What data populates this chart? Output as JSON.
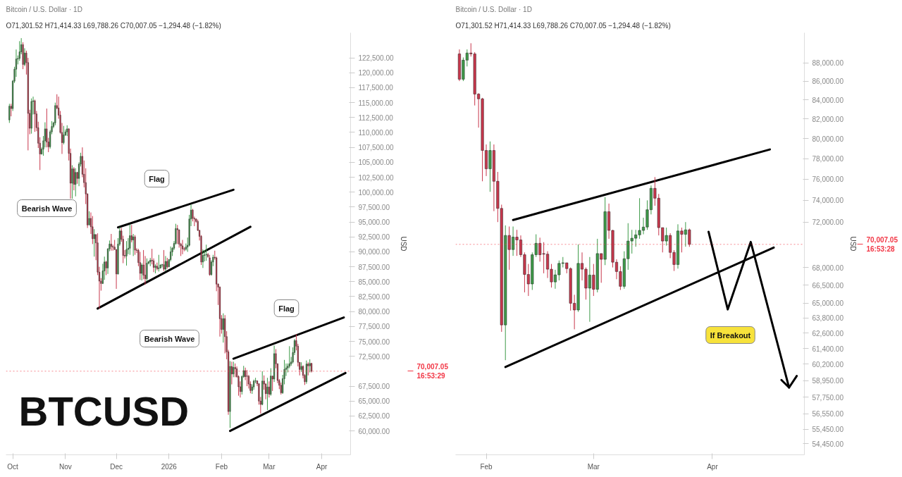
{
  "chart_data": [
    {
      "type": "candlestick",
      "title": "Bitcoin / U.S. Dollar · 1D",
      "subtitle": "O71,301.52 H71,414.33 L69,788.26 C70,007.05 −1,294.48 (−1.82%)",
      "ylabel": "USD",
      "x": [
        "2025-09-29",
        "2025-09-30",
        "2025-10-01",
        "2025-10-02",
        "2025-10-03",
        "2025-10-04",
        "2025-10-05",
        "2025-10-06",
        "2025-10-07",
        "2025-10-08",
        "2025-10-09",
        "2025-10-10",
        "2025-10-11",
        "2025-10-12",
        "2025-10-13",
        "2025-10-14",
        "2025-10-15",
        "2025-10-16",
        "2025-10-17",
        "2025-10-18",
        "2025-10-19",
        "2025-10-20",
        "2025-10-21",
        "2025-10-22",
        "2025-10-23",
        "2025-10-24",
        "2025-10-25",
        "2025-10-26",
        "2025-10-27",
        "2025-10-28",
        "2025-10-29",
        "2025-10-30",
        "2025-10-31",
        "2025-11-01",
        "2025-11-02",
        "2025-11-03",
        "2025-11-04",
        "2025-11-05",
        "2025-11-06",
        "2025-11-07",
        "2025-11-08",
        "2025-11-09",
        "2025-11-10",
        "2025-11-11",
        "2025-11-12",
        "2025-11-13",
        "2025-11-14",
        "2025-11-15",
        "2025-11-16",
        "2025-11-17",
        "2025-11-18",
        "2025-11-19",
        "2025-11-20",
        "2025-11-21",
        "2025-11-22",
        "2025-11-23",
        "2025-11-24",
        "2025-11-25",
        "2025-11-26",
        "2025-11-27",
        "2025-11-28",
        "2025-11-29",
        "2025-11-30",
        "2025-12-01",
        "2025-12-02",
        "2025-12-03",
        "2025-12-04",
        "2025-12-05",
        "2025-12-06",
        "2025-12-07",
        "2025-12-08",
        "2025-12-09",
        "2025-12-10",
        "2025-12-11",
        "2025-12-12",
        "2025-12-13",
        "2025-12-14",
        "2025-12-15",
        "2025-12-16",
        "2025-12-17",
        "2025-12-18",
        "2025-12-19",
        "2025-12-20",
        "2025-12-21",
        "2025-12-22",
        "2025-12-23",
        "2025-12-24",
        "2025-12-25",
        "2025-12-26",
        "2025-12-27",
        "2025-12-28",
        "2025-12-29",
        "2025-12-30",
        "2025-12-31",
        "2026-01-01",
        "2026-01-02",
        "2026-01-03",
        "2026-01-04",
        "2026-01-05",
        "2026-01-06",
        "2026-01-07",
        "2026-01-08",
        "2026-01-09",
        "2026-01-10",
        "2026-01-11",
        "2026-01-12",
        "2026-01-13",
        "2026-01-14",
        "2026-01-15",
        "2026-01-16",
        "2026-01-17",
        "2026-01-18",
        "2026-01-19",
        "2026-01-20",
        "2026-01-21",
        "2026-01-22",
        "2026-01-23",
        "2026-01-24",
        "2026-01-25",
        "2026-01-26",
        "2026-01-27",
        "2026-01-28",
        "2026-01-29",
        "2026-01-30",
        "2026-01-31",
        "2026-02-01",
        "2026-02-02",
        "2026-02-03",
        "2026-02-04",
        "2026-02-05",
        "2026-02-06",
        "2026-02-07",
        "2026-02-08",
        "2026-02-09",
        "2026-02-10",
        "2026-02-11",
        "2026-02-12",
        "2026-02-13",
        "2026-02-14",
        "2026-02-15",
        "2026-02-16",
        "2026-02-17",
        "2026-02-18",
        "2026-02-19",
        "2026-02-20",
        "2026-02-21",
        "2026-02-22",
        "2026-02-23",
        "2026-02-24",
        "2026-02-25",
        "2026-02-26",
        "2026-02-27",
        "2026-02-28",
        "2026-03-01",
        "2026-03-02",
        "2026-03-03",
        "2026-03-04",
        "2026-03-05",
        "2026-03-06",
        "2026-03-07",
        "2026-03-08",
        "2026-03-09",
        "2026-03-10",
        "2026-03-11",
        "2026-03-12",
        "2026-03-13",
        "2026-03-14",
        "2026-03-15",
        "2026-03-16",
        "2026-03-17",
        "2026-03-18",
        "2026-03-19",
        "2026-03-20",
        "2026-03-21",
        "2026-03-22",
        "2026-03-23",
        "2026-03-24",
        "2026-03-25",
        "2026-03-26"
      ],
      "ohlc": [
        [
          112100,
          114800,
          111600,
          114400
        ],
        [
          114400,
          114800,
          112700,
          114000
        ],
        [
          114000,
          118800,
          113600,
          118600
        ],
        [
          118600,
          121000,
          118300,
          120600
        ],
        [
          120600,
          123900,
          119300,
          122300
        ],
        [
          122300,
          122900,
          121400,
          122400
        ],
        [
          122400,
          125300,
          122000,
          123500
        ],
        [
          123500,
          125800,
          123100,
          124700
        ],
        [
          124700,
          125100,
          120600,
          121400
        ],
        [
          121400,
          124100,
          121100,
          123300
        ],
        [
          123300,
          123700,
          119700,
          121700
        ],
        [
          121700,
          122500,
          107000,
          113200
        ],
        [
          113200,
          113800,
          109700,
          110700
        ],
        [
          110700,
          115700,
          109800,
          115200
        ],
        [
          115200,
          116000,
          113000,
          115300
        ],
        [
          115300,
          115500,
          110100,
          113100
        ],
        [
          113100,
          113600,
          110200,
          110800
        ],
        [
          110800,
          111800,
          107400,
          108200
        ],
        [
          108200,
          109200,
          103700,
          106400
        ],
        [
          106400,
          107500,
          106300,
          107200
        ],
        [
          107200,
          109400,
          106100,
          108600
        ],
        [
          108600,
          111700,
          107500,
          110600
        ],
        [
          110600,
          114000,
          107500,
          108400
        ],
        [
          108400,
          109100,
          106700,
          107600
        ],
        [
          107600,
          110400,
          107300,
          110100
        ],
        [
          110100,
          111900,
          109700,
          111000
        ],
        [
          111000,
          111800,
          110700,
          111600
        ],
        [
          111600,
          115000,
          111200,
          114500
        ],
        [
          114500,
          116400,
          113900,
          114100
        ],
        [
          114100,
          116000,
          112300,
          112900
        ],
        [
          112900,
          113600,
          109800,
          110000
        ],
        [
          110000,
          111600,
          106400,
          108300
        ],
        [
          108300,
          111100,
          108000,
          109600
        ],
        [
          109600,
          110500,
          109400,
          110100
        ],
        [
          110100,
          111200,
          109400,
          110600
        ],
        [
          110600,
          110700,
          105300,
          106500
        ],
        [
          106500,
          107300,
          98900,
          101500
        ],
        [
          101500,
          104500,
          98900,
          103900
        ],
        [
          103900,
          104200,
          100300,
          101300
        ],
        [
          101300,
          104000,
          99300,
          103300
        ],
        [
          103300,
          103400,
          101400,
          102300
        ],
        [
          102300,
          105000,
          101000,
          104700
        ],
        [
          104700,
          106600,
          104300,
          106000
        ],
        [
          106000,
          107500,
          102500,
          103000
        ],
        [
          103000,
          105300,
          100800,
          101600
        ],
        [
          101600,
          104000,
          98000,
          99700
        ],
        [
          99700,
          99800,
          94000,
          94500
        ],
        [
          94500,
          96800,
          94500,
          95600
        ],
        [
          95600,
          96600,
          93000,
          94200
        ],
        [
          94200,
          96000,
          91300,
          92200
        ],
        [
          92200,
          93800,
          89200,
          92900
        ],
        [
          92900,
          92900,
          88600,
          91500
        ],
        [
          91500,
          93100,
          86100,
          86600
        ],
        [
          86600,
          87500,
          80500,
          85100
        ],
        [
          85100,
          85600,
          83500,
          84700
        ],
        [
          84700,
          88000,
          84600,
          86800
        ],
        [
          86800,
          89200,
          85300,
          88300
        ],
        [
          88300,
          88500,
          86100,
          87300
        ],
        [
          87300,
          90600,
          86300,
          90500
        ],
        [
          90500,
          91900,
          90100,
          91300
        ],
        [
          91300,
          93000,
          90200,
          90900
        ],
        [
          90900,
          91200,
          90200,
          90800
        ],
        [
          90800,
          92000,
          90300,
          90400
        ],
        [
          90400,
          90400,
          83800,
          86300
        ],
        [
          86300,
          92300,
          86200,
          91300
        ],
        [
          91300,
          94100,
          91000,
          93500
        ],
        [
          93500,
          94000,
          91700,
          92100
        ],
        [
          92100,
          92700,
          88100,
          89400
        ],
        [
          89400,
          90300,
          88900,
          89300
        ],
        [
          89300,
          91800,
          87700,
          90400
        ],
        [
          90400,
          92300,
          89600,
          90600
        ],
        [
          90600,
          94600,
          89500,
          92700
        ],
        [
          92700,
          94500,
          91600,
          92000
        ],
        [
          92000,
          93000,
          89300,
          92500
        ],
        [
          92500,
          92800,
          89500,
          90300
        ],
        [
          90300,
          90600,
          89800,
          90250
        ],
        [
          90250,
          90500,
          87600,
          88200
        ],
        [
          88200,
          90000,
          85300,
          86400
        ],
        [
          86400,
          88100,
          85200,
          87800
        ],
        [
          87800,
          90300,
          85400,
          86100
        ],
        [
          86100,
          89300,
          84500,
          85500
        ],
        [
          85500,
          88900,
          85100,
          88100
        ],
        [
          88100,
          88500,
          87900,
          88300
        ],
        [
          88300,
          89000,
          87600,
          88600
        ],
        [
          88600,
          90500,
          87900,
          88500
        ],
        [
          88500,
          88900,
          86600,
          87400
        ],
        [
          87400,
          87900,
          86400,
          87600
        ],
        [
          87600,
          88200,
          86900,
          87200
        ],
        [
          87200,
          89500,
          86700,
          87300
        ],
        [
          87300,
          87900,
          87200,
          87800
        ],
        [
          87800,
          88000,
          87400,
          87850
        ],
        [
          87850,
          90300,
          86800,
          87100
        ],
        [
          87100,
          89300,
          86800,
          88400
        ],
        [
          88400,
          89000,
          87200,
          87500
        ],
        [
          87500,
          88800,
          87400,
          88700
        ],
        [
          88700,
          90900,
          88400,
          90000
        ],
        [
          90000,
          90800,
          89300,
          90600
        ],
        [
          90600,
          91800,
          90300,
          91400
        ],
        [
          91400,
          94700,
          91200,
          93900
        ],
        [
          93900,
          94500,
          91300,
          93700
        ],
        [
          93700,
          93700,
          90700,
          91300
        ],
        [
          91300,
          91500,
          89300,
          91000
        ],
        [
          91000,
          92000,
          89600,
          90500
        ],
        [
          90500,
          90800,
          90100,
          90450
        ],
        [
          90450,
          91400,
          90200,
          90800
        ],
        [
          90800,
          92400,
          90000,
          91100
        ],
        [
          91100,
          96200,
          90900,
          95500
        ],
        [
          95500,
          97900,
          94300,
          97000
        ],
        [
          97000,
          97200,
          95100,
          95600
        ],
        [
          95600,
          95900,
          94300,
          95500
        ],
        [
          95500,
          95600,
          94900,
          95100
        ],
        [
          95100,
          95400,
          93500,
          93600
        ],
        [
          93600,
          93700,
          91900,
          92600
        ],
        [
          92600,
          92800,
          87800,
          88300
        ],
        [
          88300,
          90400,
          87300,
          89400
        ],
        [
          89400,
          90300,
          88400,
          89500
        ],
        [
          89500,
          91200,
          88500,
          89550
        ],
        [
          89550,
          89800,
          89000,
          89200
        ],
        [
          89000,
          89500,
          86000,
          86200
        ],
        [
          86200,
          88600,
          86000,
          88300
        ],
        [
          88300,
          89500,
          87600,
          89100
        ],
        [
          89100,
          90200,
          88700,
          89000
        ],
        [
          89000,
          89200,
          83400,
          84600
        ],
        [
          84600,
          84700,
          81100,
          84100
        ],
        [
          84100,
          84200,
          75800,
          78800
        ],
        [
          78800,
          79400,
          76300,
          77000
        ],
        [
          77000,
          79700,
          74800,
          78800
        ],
        [
          78800,
          79400,
          73000,
          75800
        ],
        [
          75800,
          76700,
          72000,
          73250
        ],
        [
          73250,
          73600,
          62700,
          63250
        ],
        [
          63250,
          71700,
          60500,
          70800
        ],
        [
          70800,
          71600,
          67800,
          69550
        ],
        [
          69550,
          71600,
          69000,
          70650
        ],
        [
          70650,
          71300,
          69000,
          70400
        ],
        [
          70400,
          70800,
          68900,
          69100
        ],
        [
          69100,
          69300,
          65900,
          67400
        ],
        [
          67400,
          68300,
          65600,
          66600
        ],
        [
          66600,
          69300,
          66100,
          69100
        ],
        [
          69100,
          70900,
          68900,
          70100
        ],
        [
          70100,
          70600,
          68500,
          69100
        ],
        [
          69200,
          70200,
          67500,
          69150
        ],
        [
          69150,
          69400,
          67100,
          67850
        ],
        [
          67850,
          68300,
          66300,
          66770
        ],
        [
          66770,
          67800,
          66200,
          67370
        ],
        [
          67370,
          68600,
          66900,
          68350
        ],
        [
          68350,
          68900,
          68000,
          68400
        ],
        [
          68400,
          68400,
          67500,
          67900
        ],
        [
          67900,
          68000,
          64400,
          65000
        ],
        [
          65000,
          65700,
          62900,
          64450
        ],
        [
          64450,
          70000,
          64300,
          68350
        ],
        [
          68350,
          69300,
          66900,
          67850
        ],
        [
          67850,
          68000,
          65300,
          66250
        ],
        [
          66250,
          68900,
          63500,
          67350
        ],
        [
          67350,
          68300,
          65600,
          66150
        ],
        [
          66150,
          70500,
          65900,
          69200
        ],
        [
          69200,
          69200,
          66700,
          68700
        ],
        [
          68700,
          74300,
          68200,
          72950
        ],
        [
          72950,
          73700,
          70500,
          71250
        ],
        [
          71250,
          71300,
          68000,
          68450
        ],
        [
          68450,
          68700,
          67000,
          67650
        ],
        [
          67650,
          68100,
          66100,
          66400
        ],
        [
          66400,
          69400,
          66200,
          68750
        ],
        [
          68750,
          71900,
          67800,
          70300
        ],
        [
          70300,
          71300,
          69200,
          70550
        ],
        [
          70550,
          71300,
          69800,
          70850
        ],
        [
          70850,
          74200,
          70500,
          71250
        ],
        [
          71250,
          72400,
          70900,
          71550
        ],
        [
          71550,
          74000,
          71300,
          73130
        ],
        [
          73130,
          75400,
          72700,
          75130
        ],
        [
          75130,
          76200,
          73500,
          74200
        ],
        [
          74200,
          74600,
          70800,
          71500
        ],
        [
          71500,
          71500,
          69300,
          70300
        ],
        [
          70300,
          71500,
          69900,
          70800
        ],
        [
          70800,
          71000,
          68800,
          69300
        ],
        [
          69300,
          69500,
          67700,
          68250
        ],
        [
          68250,
          71800,
          67900,
          71200
        ],
        [
          71200,
          71500,
          69300,
          70900
        ],
        [
          70900,
          72000,
          69800,
          71300
        ],
        [
          71301.52,
          71414.33,
          69788.26,
          70007.05
        ]
      ],
      "colors": [
        "#3d9a48",
        "#c8374c",
        "#3d9a48",
        "#3d9a48",
        "#3d9a48",
        "#3d9a48",
        "#3d9a48",
        "#3d9a48",
        "#c8374c",
        "#3d9a48",
        "#c8374c",
        "#c8374c",
        "#c8374c",
        "#3d9a48",
        "#3d9a48",
        "#c8374c",
        "#c8374c",
        "#c8374c",
        "#c8374c",
        "#3d9a48",
        "#3d9a48",
        "#3d9a48",
        "#c8374c",
        "#c8374c",
        "#3d9a48",
        "#3d9a48",
        "#3d9a48",
        "#3d9a48",
        "#c8374c",
        "#c8374c",
        "#c8374c",
        "#c8374c",
        "#3d9a48",
        "#3d9a48",
        "#3d9a48",
        "#c8374c",
        "#c8374c",
        "#3d9a48",
        "#c8374c",
        "#3d9a48",
        "#c8374c",
        "#3d9a48",
        "#3d9a48",
        "#c8374c",
        "#c8374c",
        "#c8374c",
        "#c8374c",
        "#3d9a48",
        "#c8374c",
        "#c8374c",
        "#3d9a48",
        "#c8374c",
        "#c8374c",
        "#c8374c",
        "#c8374c",
        "#3d9a48",
        "#3d9a48",
        "#c8374c",
        "#3d9a48",
        "#3d9a48",
        "#c8374c",
        "#c8374c",
        "#c8374c",
        "#c8374c",
        "#3d9a48",
        "#3d9a48",
        "#c8374c",
        "#c8374c",
        "#c8374c",
        "#3d9a48",
        "#3d9a48",
        "#3d9a48",
        "#c8374c",
        "#3d9a48",
        "#c8374c",
        "#c8374c",
        "#c8374c",
        "#c8374c",
        "#3d9a48",
        "#c8374c",
        "#c8374c",
        "#3d9a48",
        "#3d9a48",
        "#3d9a48",
        "#c8374c",
        "#c8374c",
        "#3d9a48",
        "#c8374c",
        "#3d9a48",
        "#3d9a48",
        "#3d9a48",
        "#c8374c",
        "#3d9a48",
        "#c8374c",
        "#3d9a48",
        "#3d9a48",
        "#3d9a48",
        "#3d9a48",
        "#3d9a48",
        "#c8374c",
        "#c8374c",
        "#c8374c",
        "#c8374c",
        "#c8374c",
        "#3d9a48",
        "#3d9a48",
        "#3d9a48",
        "#3d9a48",
        "#c8374c",
        "#c8374c",
        "#c8374c",
        "#c8374c",
        "#c8374c",
        "#c8374c",
        "#3d9a48",
        "#3d9a48",
        "#3d9a48",
        "#c8374c",
        "#c8374c",
        "#3d9a48",
        "#3d9a48",
        "#c8374c",
        "#c8374c",
        "#c8374c",
        "#c8374c",
        "#c8374c",
        "#3d9a48",
        "#c8374c",
        "#c8374c",
        "#c8374c",
        "#3d9a48",
        "#c8374c",
        "#3d9a48",
        "#c8374c",
        "#c8374c",
        "#c8374c",
        "#c8374c",
        "#3d9a48",
        "#3d9a48",
        "#c8374c",
        "#c8374c",
        "#c8374c",
        "#c8374c",
        "#3d9a48",
        "#3d9a48",
        "#3d9a48",
        "#c8374c",
        "#c8374c",
        "#c8374c",
        "#3d9a48",
        "#c8374c",
        "#c8374c",
        "#3d9a48",
        "#c8374c",
        "#3d9a48",
        "#c8374c",
        "#3d9a48",
        "#c8374c",
        "#c8374c",
        "#c8374c",
        "#c8374c",
        "#3d9a48",
        "#3d9a48",
        "#3d9a48",
        "#3d9a48",
        "#3d9a48",
        "#3d9a48",
        "#3d9a48",
        "#3d9a48",
        "#c8374c",
        "#c8374c",
        "#c8374c",
        "#3d9a48",
        "#c8374c",
        "#c8374c",
        "#3d9a48",
        "#c8374c",
        "#3d9a48",
        "#c8374c"
      ],
      "series": [
        {
          "type": "line",
          "color": "#000000",
          "x": [
            "2025-12-02",
            "2026-02-08"
          ],
          "values": [
            94100,
            100400
          ]
        },
        {
          "type": "line",
          "color": "#000000",
          "x": [
            "2025-11-20",
            "2026-02-18"
          ],
          "values": [
            80500,
            94200
          ]
        },
        {
          "type": "line",
          "color": "#000000",
          "x": [
            "2026-02-08",
            "2026-04-14"
          ],
          "values": [
            72100,
            79000
          ]
        },
        {
          "type": "line",
          "color": "#000000",
          "x": [
            "2026-02-06",
            "2026-04-15"
          ],
          "values": [
            60000,
            69700
          ]
        }
      ],
      "xlim": [
        "2025-09-27",
        "2026-04-18"
      ],
      "ylim": [
        56000,
        126700
      ],
      "xticks": [
        {
          "value": "2025-10-01",
          "label": "Oct"
        },
        {
          "value": "2025-11-01",
          "label": "Nov"
        },
        {
          "value": "2025-12-01",
          "label": "Dec"
        },
        {
          "value": "2026-01-01",
          "label": "2026"
        },
        {
          "value": "2026-02-01",
          "label": "Feb"
        },
        {
          "value": "2026-03-01",
          "label": "Mar"
        },
        {
          "value": "2026-04-01",
          "label": "Apr"
        }
      ],
      "yticks": [
        {
          "value": 60000,
          "label": "60,000.00"
        },
        {
          "value": 62500,
          "label": "62,500.00"
        },
        {
          "value": 65000,
          "label": "65,000.00"
        },
        {
          "value": 67500,
          "label": "67,500.00"
        },
        {
          "value": 72500,
          "label": "72,500.00"
        },
        {
          "value": 75000,
          "label": "75,000.00"
        },
        {
          "value": 77500,
          "label": "77,500.00"
        },
        {
          "value": 80000,
          "label": "80,000.00"
        },
        {
          "value": 82500,
          "label": "82,500.00"
        },
        {
          "value": 85000,
          "label": "85,000.00"
        },
        {
          "value": 87500,
          "label": "87,500.00"
        },
        {
          "value": 90000,
          "label": "90,000.00"
        },
        {
          "value": 92500,
          "label": "92,500.00"
        },
        {
          "value": 95000,
          "label": "95,000.00"
        },
        {
          "value": 97500,
          "label": "97,500.00"
        },
        {
          "value": 100000,
          "label": "100,000.00"
        },
        {
          "value": 102500,
          "label": "102,500.00"
        },
        {
          "value": 105000,
          "label": "105,000.00"
        },
        {
          "value": 107500,
          "label": "107,500.00"
        },
        {
          "value": 110000,
          "label": "110,000.00"
        },
        {
          "value": 112500,
          "label": "112,500.00"
        },
        {
          "value": 115000,
          "label": "115,000.00"
        },
        {
          "value": 117500,
          "label": "117,500.00"
        },
        {
          "value": 120000,
          "label": "120,000.00"
        },
        {
          "value": 122500,
          "label": "122,500.00"
        }
      ],
      "ref_lines": [
        {
          "axis": "y",
          "value": 70007.05,
          "label": "70,007.05\n16:53:29",
          "color": "#f23645",
          "line_style": "dotted"
        }
      ],
      "annotations": [
        "BTCUSD",
        "Flag",
        "Bearish Wave",
        "Flag",
        "Bearish Wave"
      ]
    },
    {
      "type": "candlestick",
      "title": "Bitcoin / U.S. Dollar · 1D",
      "subtitle": "O71,301.52 H71,414.33 L69,788.26 C70,007.05 −1,294.48 (−1.82%)",
      "ylabel": "USD",
      "log": "y",
      "x": [
        "2026-01-25",
        "2026-01-26",
        "2026-01-27",
        "2026-01-28",
        "2026-01-29",
        "2026-01-30",
        "2026-01-31",
        "2026-02-01",
        "2026-02-02",
        "2026-02-03",
        "2026-02-04",
        "2026-02-05",
        "2026-02-06",
        "2026-02-07",
        "2026-02-08",
        "2026-02-09",
        "2026-02-10",
        "2026-02-11",
        "2026-02-12",
        "2026-02-13",
        "2026-02-14",
        "2026-02-15",
        "2026-02-16",
        "2026-02-17",
        "2026-02-18",
        "2026-02-19",
        "2026-02-20",
        "2026-02-21",
        "2026-02-22",
        "2026-02-23",
        "2026-02-24",
        "2026-02-25",
        "2026-02-26",
        "2026-02-27",
        "2026-02-28",
        "2026-03-01",
        "2026-03-02",
        "2026-03-03",
        "2026-03-04",
        "2026-03-05",
        "2026-03-06",
        "2026-03-07",
        "2026-03-08",
        "2026-03-09",
        "2026-03-10",
        "2026-03-11",
        "2026-03-12",
        "2026-03-13",
        "2026-03-14",
        "2026-03-15",
        "2026-03-16",
        "2026-03-17",
        "2026-03-18",
        "2026-03-19",
        "2026-03-20",
        "2026-03-21",
        "2026-03-22",
        "2026-03-23",
        "2026-03-24",
        "2026-03-25",
        "2026-03-26"
      ],
      "ohlc": [
        [
          89000,
          89500,
          86000,
          86200
        ],
        [
          86200,
          88600,
          86000,
          88300
        ],
        [
          88300,
          89500,
          87600,
          89100
        ],
        [
          89100,
          90200,
          88700,
          89000
        ],
        [
          89000,
          89200,
          83400,
          84600
        ],
        [
          84600,
          84700,
          81100,
          84100
        ],
        [
          84100,
          84200,
          75800,
          78800
        ],
        [
          78800,
          79400,
          76300,
          77000
        ],
        [
          77000,
          79700,
          74800,
          78800
        ],
        [
          78800,
          79400,
          73000,
          75800
        ],
        [
          75800,
          76700,
          72000,
          73250
        ],
        [
          73250,
          73600,
          62700,
          63250
        ],
        [
          63250,
          71700,
          60500,
          70800
        ],
        [
          70800,
          71600,
          67800,
          69550
        ],
        [
          69550,
          71600,
          69000,
          70650
        ],
        [
          70650,
          71300,
          69000,
          70400
        ],
        [
          70400,
          70800,
          68900,
          69100
        ],
        [
          69100,
          69300,
          65900,
          67400
        ],
        [
          67400,
          68300,
          65600,
          66600
        ],
        [
          66600,
          69300,
          66100,
          69100
        ],
        [
          69100,
          70900,
          68900,
          70100
        ],
        [
          70100,
          70600,
          68500,
          69100
        ],
        [
          69200,
          70200,
          67500,
          69150
        ],
        [
          69150,
          69400,
          67100,
          67850
        ],
        [
          67850,
          68300,
          66300,
          66770
        ],
        [
          66770,
          67800,
          66200,
          67370
        ],
        [
          67370,
          68600,
          66900,
          68350
        ],
        [
          68350,
          68900,
          68000,
          68400
        ],
        [
          68400,
          68400,
          67500,
          67900
        ],
        [
          67900,
          68000,
          64400,
          65000
        ],
        [
          65000,
          65700,
          62900,
          64450
        ],
        [
          64450,
          70000,
          64300,
          68350
        ],
        [
          68350,
          69300,
          66900,
          67850
        ],
        [
          67850,
          68000,
          65300,
          66250
        ],
        [
          66250,
          68900,
          63500,
          67350
        ],
        [
          67350,
          68300,
          65600,
          66150
        ],
        [
          66150,
          70500,
          65900,
          69200
        ],
        [
          69200,
          69200,
          66700,
          68700
        ],
        [
          68700,
          74300,
          68200,
          72950
        ],
        [
          72950,
          73700,
          70500,
          71250
        ],
        [
          71250,
          71300,
          68000,
          68450
        ],
        [
          68450,
          68700,
          67000,
          67650
        ],
        [
          67650,
          68100,
          66100,
          66400
        ],
        [
          66400,
          69400,
          66200,
          68750
        ],
        [
          68750,
          71900,
          67800,
          70300
        ],
        [
          70300,
          71300,
          69200,
          70550
        ],
        [
          70550,
          71300,
          69800,
          70850
        ],
        [
          70850,
          74200,
          70500,
          71250
        ],
        [
          71250,
          72400,
          70900,
          71550
        ],
        [
          71550,
          74000,
          71300,
          73130
        ],
        [
          73130,
          75400,
          72700,
          75130
        ],
        [
          75130,
          76200,
          73500,
          74200
        ],
        [
          74200,
          74600,
          70800,
          71500
        ],
        [
          71500,
          71500,
          69300,
          70300
        ],
        [
          70300,
          71500,
          69900,
          70800
        ],
        [
          70800,
          71000,
          68800,
          69300
        ],
        [
          69300,
          69500,
          67700,
          68250
        ],
        [
          68250,
          71800,
          67900,
          71200
        ],
        [
          71200,
          71500,
          69300,
          70900
        ],
        [
          70900,
          72000,
          69800,
          71300
        ],
        [
          71301.52,
          71414.33,
          69788.26,
          70007.05
        ]
      ],
      "colors": [
        "#c8374c",
        "#3d9a48",
        "#3d9a48",
        "#c8374c",
        "#c8374c",
        "#c8374c",
        "#c8374c",
        "#c8374c",
        "#3d9a48",
        "#c8374c",
        "#c8374c",
        "#c8374c",
        "#3d9a48",
        "#c8374c",
        "#3d9a48",
        "#c8374c",
        "#c8374c",
        "#c8374c",
        "#c8374c",
        "#3d9a48",
        "#3d9a48",
        "#c8374c",
        "#c8374c",
        "#c8374c",
        "#c8374c",
        "#3d9a48",
        "#3d9a48",
        "#3d9a48",
        "#c8374c",
        "#c8374c",
        "#c8374c",
        "#3d9a48",
        "#c8374c",
        "#c8374c",
        "#3d9a48",
        "#c8374c",
        "#3d9a48",
        "#c8374c",
        "#3d9a48",
        "#c8374c",
        "#c8374c",
        "#c8374c",
        "#c8374c",
        "#3d9a48",
        "#3d9a48",
        "#3d9a48",
        "#3d9a48",
        "#3d9a48",
        "#3d9a48",
        "#3d9a48",
        "#3d9a48",
        "#c8374c",
        "#c8374c",
        "#c8374c",
        "#3d9a48",
        "#c8374c",
        "#c8374c",
        "#3d9a48",
        "#c8374c",
        "#3d9a48",
        "#c8374c"
      ],
      "series": [
        {
          "type": "line",
          "color": "#000000",
          "x": [
            "2026-02-08",
            "2026-04-16"
          ],
          "values": [
            72190,
            78900
          ]
        },
        {
          "type": "line",
          "color": "#000000",
          "x": [
            "2026-02-06",
            "2026-04-17"
          ],
          "values": [
            59980,
            69730
          ]
        },
        {
          "type": "line",
          "color": "#000000",
          "x": [
            "2026-03-31",
            "2026-04-05",
            "2026-04-11",
            "2026-04-21"
          ],
          "values": [
            71130,
            64500,
            70220,
            58450
          ]
        },
        {
          "type": "line",
          "color": "#000000",
          "x": [
            "2026-04-19",
            "2026-04-21",
            "2026-04-23"
          ],
          "values": [
            59010,
            58450,
            59310
          ]
        }
      ],
      "xlim": [
        "2026-01-24",
        "2026-04-25"
      ],
      "ylim": [
        53700,
        91400
      ],
      "xticks": [
        {
          "value": "2026-02-01",
          "label": "Feb"
        },
        {
          "value": "2026-03-01",
          "label": "Mar"
        },
        {
          "value": "2026-04-01",
          "label": "Apr"
        }
      ],
      "yticks": [
        {
          "value": 54450,
          "label": "54,450.00"
        },
        {
          "value": 55450,
          "label": "55,450.00"
        },
        {
          "value": 56550,
          "label": "56,550.00"
        },
        {
          "value": 57750,
          "label": "57,750.00"
        },
        {
          "value": 58950,
          "label": "58,950.00"
        },
        {
          "value": 60200,
          "label": "60,200.00"
        },
        {
          "value": 61400,
          "label": "61,400.00"
        },
        {
          "value": 62600,
          "label": "62,600.00"
        },
        {
          "value": 63800,
          "label": "63,800.00"
        },
        {
          "value": 65000,
          "label": "65,000.00"
        },
        {
          "value": 66500,
          "label": "66,500.00"
        },
        {
          "value": 68000,
          "label": "68,000.00"
        },
        {
          "value": 72000,
          "label": "72,000.00"
        },
        {
          "value": 74000,
          "label": "74,000.00"
        },
        {
          "value": 76000,
          "label": "76,000.00"
        },
        {
          "value": 78000,
          "label": "78,000.00"
        },
        {
          "value": 80000,
          "label": "80,000.00"
        },
        {
          "value": 82000,
          "label": "82,000.00"
        },
        {
          "value": 84000,
          "label": "84,000.00"
        },
        {
          "value": 86000,
          "label": "86,000.00"
        },
        {
          "value": 88000,
          "label": "88,000.00"
        }
      ],
      "ref_lines": [
        {
          "axis": "y",
          "value": 70007.05,
          "label": "70,007.05\n16:53:28",
          "color": "#f23645",
          "line_style": "dotted"
        }
      ],
      "annotations": [
        "If Breakout"
      ]
    }
  ]
}
